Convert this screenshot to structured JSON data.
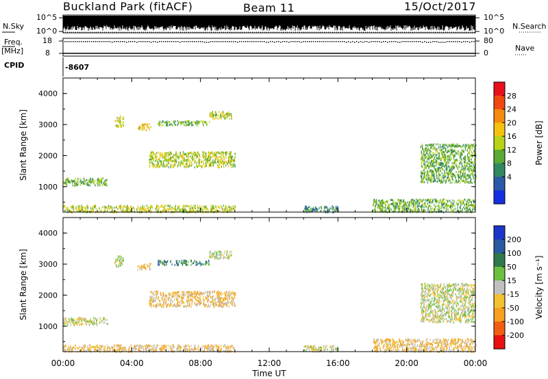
{
  "header": {
    "station": "Buckland Park (fitACF)",
    "beam": "Beam 11",
    "date": "15/Oct/2017"
  },
  "strips": {
    "nsky_label": "N.Sky",
    "nsky_ticks": [
      "10^5",
      "10^0"
    ],
    "nsearch_label": "N.Search",
    "nsearch_ticks": [
      "10^5",
      "10^0"
    ],
    "freq_label": "Freq.",
    "freq_unit": "[MHz]",
    "freq_ticks": [
      "18",
      "8"
    ],
    "nave_label": "Nave",
    "nave_ticks": [
      "80",
      "0"
    ],
    "cpid_label": "CPID",
    "cpid_value": "-8607"
  },
  "axes": {
    "ylabel": "Slant Range [km]",
    "xlabel": "Time UT",
    "yticks": [
      "4000",
      "3000",
      "2000",
      "1000"
    ],
    "xticks": [
      "00:00",
      "04:00",
      "08:00",
      "12:00",
      "16:00",
      "20:00",
      "00:00"
    ]
  },
  "power_bar": {
    "label": "Power [dB]",
    "ticks": [
      "28",
      "24",
      "20",
      "16",
      "12",
      "8",
      "4"
    ],
    "colors": [
      "#e8101a",
      "#f04810",
      "#f58a10",
      "#f5c210",
      "#b8d218",
      "#5aaa35",
      "#308860",
      "#2a5aa5",
      "#1530e0"
    ]
  },
  "velocity_bar": {
    "label": "Velocity [m s⁻¹]",
    "ticks": [
      "200",
      "100",
      "50",
      "15",
      "-15",
      "-50",
      "-100",
      "-200"
    ],
    "colors": [
      "#1a35c8",
      "#2a5aa0",
      "#2f7a4a",
      "#6cc040",
      "#c0c0c0",
      "#f2c030",
      "#f5a020",
      "#f06010",
      "#e81010"
    ]
  },
  "chart_data": {
    "type": "heatmap",
    "panels": [
      "power",
      "velocity"
    ],
    "x_range_hours": [
      0,
      24
    ],
    "y_range_km": [
      180,
      4500
    ],
    "regions": [
      {
        "t0": 0.0,
        "t1": 2.6,
        "r0": 1060,
        "r1": 1300,
        "power": 7,
        "velocity": -5
      },
      {
        "t0": 0.0,
        "t1": 10.0,
        "r0": 200,
        "r1": 420,
        "power": 14,
        "velocity": -30
      },
      {
        "t0": 3.0,
        "t1": 3.5,
        "r0": 2950,
        "r1": 3300,
        "power": 12,
        "velocity": 10
      },
      {
        "t0": 4.3,
        "t1": 5.1,
        "r0": 2850,
        "r1": 3050,
        "power": 18,
        "velocity": -20
      },
      {
        "t0": 5.5,
        "t1": 8.5,
        "r0": 3000,
        "r1": 3150,
        "power": 9,
        "velocity": 60
      },
      {
        "t0": 5.0,
        "t1": 10.0,
        "r0": 1650,
        "r1": 2150,
        "power": 12,
        "velocity": -25
      },
      {
        "t0": 8.5,
        "t1": 9.8,
        "r0": 3200,
        "r1": 3450,
        "power": 12,
        "velocity": -10
      },
      {
        "t0": 14.0,
        "t1": 16.0,
        "r0": 200,
        "r1": 400,
        "power": 6,
        "velocity": -5
      },
      {
        "t0": 18.0,
        "t1": 24.0,
        "r0": 200,
        "r1": 620,
        "power": 9,
        "velocity": -40
      },
      {
        "t0": 20.8,
        "t1": 24.0,
        "r0": 1150,
        "r1": 2400,
        "power": 10,
        "velocity": -5
      }
    ]
  }
}
